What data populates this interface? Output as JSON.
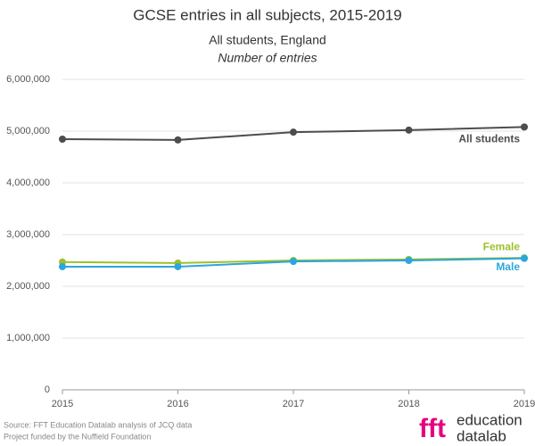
{
  "chart_data": {
    "type": "line",
    "title": "GCSE entries in all subjects, 2015-2019",
    "subtitle": "All students, England",
    "y_label": "Number of entries",
    "x": [
      2015,
      2016,
      2017,
      2018,
      2019
    ],
    "xlim": [
      2015,
      2019
    ],
    "xticks": [
      2015,
      2016,
      2017,
      2018,
      2019
    ],
    "ylim": [
      0,
      6000000
    ],
    "yticks": [
      0,
      {
        "value": 1000000,
        "label": "1,000,000"
      },
      {
        "value": 2000000,
        "label": "2,000,000"
      },
      {
        "value": 3000000,
        "label": "3,000,000"
      },
      {
        "value": 4000000,
        "label": "4,000,000"
      },
      {
        "value": 5000000,
        "label": "5,000,000"
      },
      {
        "value": 6000000,
        "label": "6,000,000"
      }
    ],
    "grid": true,
    "series": [
      {
        "name": "All students",
        "color": "#4d4d4d",
        "values": [
          4845000,
          4830000,
          4980000,
          5020000,
          5080000
        ]
      },
      {
        "name": "Female",
        "color": "#9dc12a",
        "values": [
          2470000,
          2450000,
          2500000,
          2520000,
          2550000
        ]
      },
      {
        "name": "Male",
        "color": "#2ba6de",
        "values": [
          2380000,
          2380000,
          2480000,
          2500000,
          2540000
        ]
      }
    ],
    "source": "Source: FFT Education Datalab analysis of JCQ data",
    "funding": "Project funded by the Nuffield Foundation",
    "logo": {
      "mark": "fft",
      "line1": "education",
      "line2": "datalab"
    }
  }
}
